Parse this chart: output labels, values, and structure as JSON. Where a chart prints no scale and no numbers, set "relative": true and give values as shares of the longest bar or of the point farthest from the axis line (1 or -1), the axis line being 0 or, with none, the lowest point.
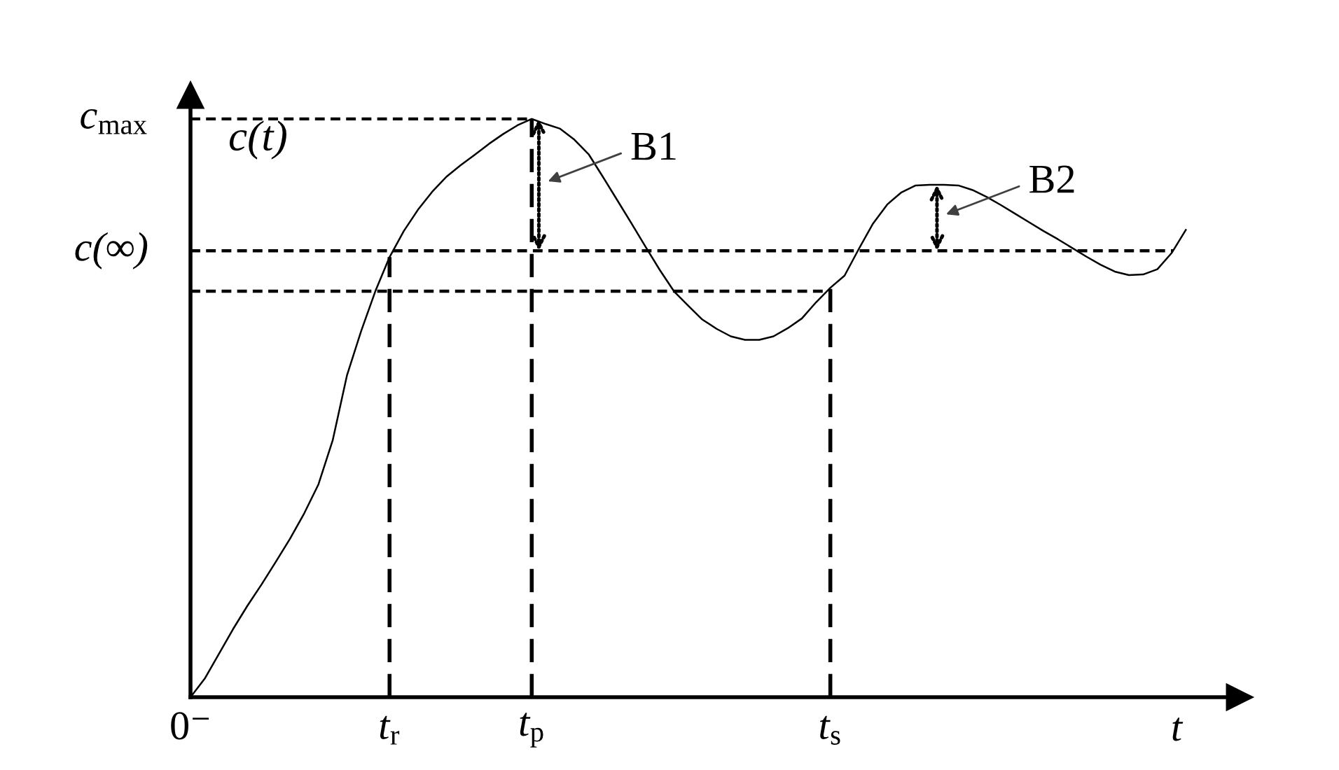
{
  "chart_data": {
    "type": "line",
    "relative": true,
    "xlabel": "t",
    "ylabel": "c(t)",
    "categories": [
      "0⁻",
      null,
      null,
      null,
      null,
      null,
      null,
      null,
      null,
      null,
      null,
      null,
      null,
      null,
      "t$_{r}$",
      null,
      null,
      null,
      null,
      null,
      null,
      null,
      null,
      null,
      "t$_{p}$",
      null,
      null,
      null,
      null,
      null,
      null,
      null,
      null,
      null,
      null,
      null,
      null,
      null,
      null,
      null,
      null,
      null,
      null,
      null,
      null,
      "t$_{s}$",
      null,
      null,
      null,
      null,
      null,
      null,
      null,
      null,
      null,
      null,
      null,
      null,
      null,
      null,
      null,
      null,
      null,
      null,
      null,
      null,
      null,
      null,
      null,
      null,
      null
    ],
    "series": [
      {
        "color": "#000000",
        "values": [
          0,
          0.032,
          0.075,
          0.118,
          0.158,
          0.195,
          0.234,
          0.274,
          0.318,
          0.368,
          0.444,
          0.556,
          0.633,
          0.702,
          0.761,
          0.806,
          0.843,
          0.874,
          0.9,
          0.92,
          0.938,
          0.957,
          0.974,
          0.989,
          1.0,
          0.991,
          0.983,
          0.964,
          0.939,
          0.9,
          0.86,
          0.82,
          0.779,
          0.739,
          0.702,
          0.677,
          0.653,
          0.637,
          0.624,
          0.618,
          0.618,
          0.624,
          0.638,
          0.655,
          0.683,
          0.708,
          0.729,
          0.775,
          0.819,
          0.852,
          0.873,
          0.885,
          0.886,
          0.886,
          0.885,
          0.877,
          0.865,
          0.851,
          0.836,
          0.821,
          0.806,
          0.792,
          0.777,
          0.762,
          0.748,
          0.736,
          0.73,
          0.731,
          0.74,
          0.768,
          0.808
        ]
      }
    ],
    "ref_lines": [
      {
        "axis": "y",
        "value": 1.0,
        "label": "c$_{max}$",
        "color": "#000000",
        "line_style": "dashed"
      },
      {
        "axis": "y",
        "value": 0.772,
        "label": "c(∞)",
        "color": "#000000",
        "line_style": "dashed"
      },
      {
        "axis": "y",
        "value": 0.702,
        "color": "#000000",
        "line_style": "dashed"
      },
      {
        "axis": "x",
        "value": "t$_{r}$",
        "color": "#000000",
        "line_style": "dashed"
      },
      {
        "axis": "x",
        "value": "t$_{p}$",
        "color": "#000000",
        "line_style": "dashed"
      },
      {
        "axis": "x",
        "value": "t$_{s}$",
        "color": "#000000",
        "line_style": "dashed"
      }
    ],
    "annotations": [
      "B1",
      "B2"
    ]
  }
}
